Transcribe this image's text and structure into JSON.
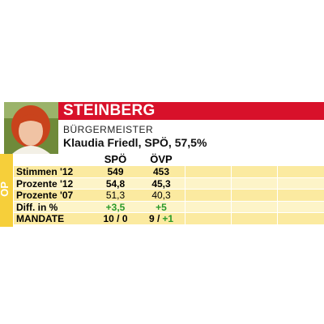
{
  "header": {
    "title": "STEINBERG",
    "subtitle": "BÜRGERMEISTER",
    "mayor": "Klaudia Friedl, SPÖ, 57,5%",
    "side_label": "OP"
  },
  "table": {
    "columns": [
      "SPÖ",
      "ÖVP"
    ],
    "rows": [
      {
        "label": "Stimmen '12",
        "cells": [
          "549",
          "453"
        ]
      },
      {
        "label": "Prozente '12",
        "cells": [
          "54,8",
          "45,3"
        ]
      },
      {
        "label": "Prozente '07",
        "cells": [
          "51,3",
          "40,3"
        ]
      },
      {
        "label": "Diff. in %",
        "cells": [
          "+3,5",
          "+5"
        ]
      },
      {
        "label": "MANDATE",
        "cells": [
          "10 / 0",
          "9 /"
        ],
        "change": "+1"
      }
    ]
  }
}
